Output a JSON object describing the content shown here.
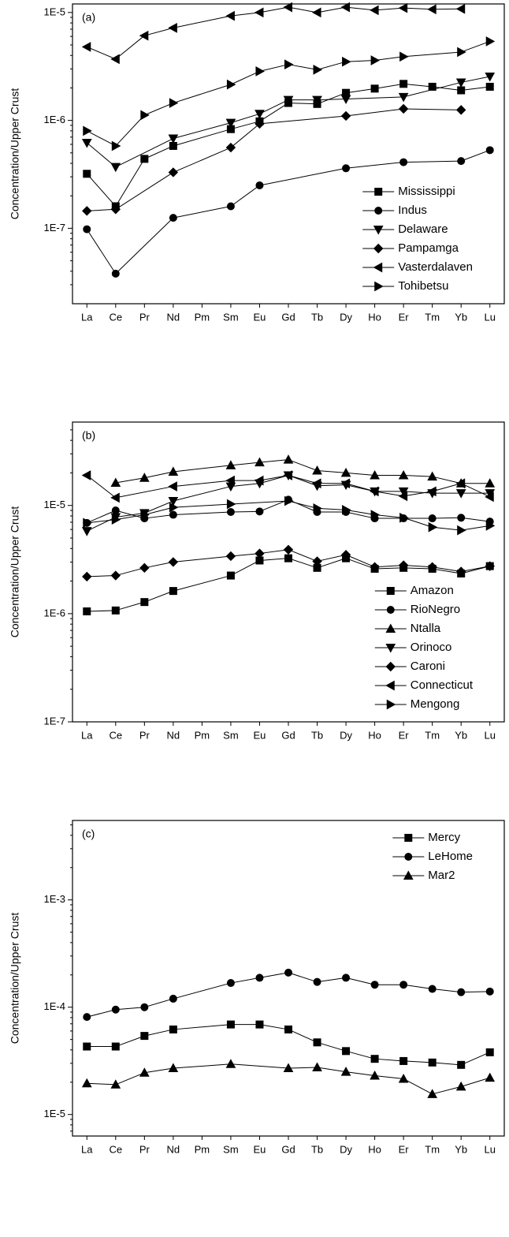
{
  "chart_data": [
    {
      "type": "line",
      "annotation": "(a)",
      "y_label": "Concentration/Upper Crust",
      "log_scale": true,
      "legend": "lower right",
      "categories": [
        "La",
        "Ce",
        "Pr",
        "Nd",
        "Pm",
        "Sm",
        "Eu",
        "Gd",
        "Tb",
        "Dy",
        "Ho",
        "Er",
        "Tm",
        "Yb",
        "Lu"
      ],
      "ylim": [
        2e-08,
        1.2e-05
      ],
      "yticks": [
        {
          "value": 1e-07,
          "label": "1E-7"
        },
        {
          "value": 1e-06,
          "label": "1E-6"
        },
        {
          "value": 1e-05,
          "label": "1E-5"
        }
      ],
      "series": [
        {
          "name": "Mississippi",
          "marker": "square",
          "color": "#000000",
          "values": [
            3.2e-07,
            1.6e-07,
            4.4e-07,
            5.8e-07,
            null,
            8.3e-07,
            9.8e-07,
            1.45e-06,
            1.42e-06,
            1.8e-06,
            1.97e-06,
            2.18e-06,
            2.05e-06,
            1.9e-06,
            2.05e-06
          ]
        },
        {
          "name": "Indus",
          "marker": "circle",
          "color": "#000000",
          "values": [
            9.8e-08,
            3.8e-08,
            null,
            1.25e-07,
            null,
            1.6e-07,
            2.5e-07,
            null,
            null,
            3.6e-07,
            null,
            4.1e-07,
            null,
            4.2e-07,
            5.3e-07
          ]
        },
        {
          "name": "Delaware",
          "marker": "triangle-down",
          "color": "#000000",
          "values": [
            6.2e-07,
            3.7e-07,
            null,
            6.8e-07,
            null,
            9.5e-07,
            1.15e-06,
            1.55e-06,
            1.55e-06,
            1.58e-06,
            null,
            1.65e-06,
            null,
            2.25e-06,
            2.55e-06
          ]
        },
        {
          "name": "Pampamga",
          "marker": "diamond",
          "color": "#000000",
          "values": [
            1.45e-07,
            1.5e-07,
            null,
            3.3e-07,
            null,
            5.6e-07,
            9.3e-07,
            null,
            null,
            1.1e-06,
            null,
            1.28e-06,
            null,
            1.25e-06,
            null
          ]
        },
        {
          "name": "Vasterdalaven",
          "marker": "triangle-left",
          "color": "#000000",
          "values": [
            4.8e-06,
            3.7e-06,
            6.1e-06,
            7.2e-06,
            null,
            9.3e-06,
            1e-05,
            1.12e-05,
            1e-05,
            1.12e-05,
            1.05e-05,
            1.1e-05,
            1.07e-05,
            1.08e-05,
            null
          ]
        },
        {
          "name": "Tohibetsu",
          "marker": "triangle-right",
          "color": "#000000",
          "values": [
            8e-07,
            5.8e-07,
            1.12e-06,
            1.45e-06,
            null,
            2.15e-06,
            2.85e-06,
            3.3e-06,
            2.95e-06,
            3.5e-06,
            3.6e-06,
            3.9e-06,
            null,
            4.3e-06,
            5.4e-06
          ]
        }
      ]
    },
    {
      "type": "line",
      "annotation": "(b)",
      "y_label": "Concentration/Upper Crust",
      "log_scale": true,
      "legend": "lower right",
      "categories": [
        "La",
        "Ce",
        "Pr",
        "Nd",
        "Pm",
        "Sm",
        "Eu",
        "Gd",
        "Tb",
        "Dy",
        "Ho",
        "Er",
        "Tm",
        "Yb",
        "Lu"
      ],
      "ylim": [
        1e-07,
        5.9e-05
      ],
      "yticks": [
        {
          "value": 1e-07,
          "label": "1E-7"
        },
        {
          "value": 1e-06,
          "label": "1E-6"
        },
        {
          "value": 1e-05,
          "label": "1E-5"
        }
      ],
      "series": [
        {
          "name": "Amazon",
          "marker": "square",
          "color": "#000000",
          "values": [
            1.05e-06,
            1.07e-06,
            1.28e-06,
            1.62e-06,
            null,
            2.25e-06,
            3.1e-06,
            3.25e-06,
            2.65e-06,
            3.25e-06,
            2.6e-06,
            2.65e-06,
            2.6e-06,
            2.35e-06,
            2.75e-06
          ]
        },
        {
          "name": "RioNegro",
          "marker": "circle",
          "color": "#000000",
          "values": [
            6.9e-06,
            9e-06,
            7.6e-06,
            8.2e-06,
            null,
            8.7e-06,
            8.8e-06,
            1.13e-05,
            8.7e-06,
            8.7e-06,
            7.6e-06,
            7.6e-06,
            7.6e-06,
            7.7e-06,
            7.1e-06
          ]
        },
        {
          "name": "Ntalla",
          "marker": "triangle-up",
          "color": "#000000",
          "values": [
            null,
            1.62e-05,
            1.8e-05,
            2.05e-05,
            null,
            2.35e-05,
            2.5e-05,
            2.65e-05,
            2.1e-05,
            2e-05,
            1.9e-05,
            1.9e-05,
            1.85e-05,
            1.6e-05,
            1.6e-05
          ]
        },
        {
          "name": "Orinoco",
          "marker": "triangle-down",
          "color": "#000000",
          "values": [
            5.8e-06,
            7.8e-06,
            8.5e-06,
            1.1e-05,
            null,
            1.5e-05,
            1.6e-05,
            1.9e-05,
            1.52e-05,
            1.55e-05,
            1.35e-05,
            1.35e-05,
            1.3e-05,
            1.3e-05,
            1.3e-05
          ]
        },
        {
          "name": "Caroni",
          "marker": "diamond",
          "color": "#000000",
          "values": [
            2.2e-06,
            2.25e-06,
            2.65e-06,
            3e-06,
            null,
            3.4e-06,
            3.6e-06,
            3.9e-06,
            3.05e-06,
            3.5e-06,
            2.7e-06,
            2.8e-06,
            2.7e-06,
            2.45e-06,
            2.75e-06
          ]
        },
        {
          "name": "Connecticut",
          "marker": "triangle-left",
          "color": "#000000",
          "values": [
            1.9e-05,
            1.18e-05,
            null,
            1.5e-05,
            null,
            1.7e-05,
            1.7e-05,
            1.9e-05,
            1.6e-05,
            1.6e-05,
            1.35e-05,
            1.22e-05,
            1.35e-05,
            1.6e-05,
            1.2e-05
          ]
        },
        {
          "name": "Mengong",
          "marker": "triangle-right",
          "color": "#000000",
          "values": [
            6.9e-06,
            7.4e-06,
            8.2e-06,
            9.6e-06,
            null,
            1.03e-05,
            null,
            1.1e-05,
            9.4e-06,
            9.1e-06,
            8.2e-06,
            7.7e-06,
            6.3e-06,
            5.9e-06,
            6.5e-06
          ]
        }
      ]
    },
    {
      "type": "line",
      "annotation": "(c)",
      "y_label": "Concentration/Upper Crust",
      "log_scale": true,
      "legend": "upper right",
      "categories": [
        "La",
        "Ce",
        "Pr",
        "Nd",
        "Pm",
        "Sm",
        "Eu",
        "Gd",
        "Tb",
        "Dy",
        "Ho",
        "Er",
        "Tm",
        "Yb",
        "Lu"
      ],
      "ylim": [
        6.3e-06,
        0.0055
      ],
      "yticks": [
        {
          "value": 1e-05,
          "label": "1E-5"
        },
        {
          "value": 0.0001,
          "label": "1E-4"
        },
        {
          "value": 0.001,
          "label": "1E-3"
        }
      ],
      "series": [
        {
          "name": "Mercy",
          "marker": "square",
          "color": "#000000",
          "values": [
            4.3e-05,
            4.3e-05,
            5.4e-05,
            6.2e-05,
            null,
            6.9e-05,
            6.9e-05,
            6.2e-05,
            4.7e-05,
            3.9e-05,
            3.3e-05,
            3.15e-05,
            3.05e-05,
            2.9e-05,
            3.8e-05
          ]
        },
        {
          "name": "LeHome",
          "marker": "circle",
          "color": "#000000",
          "values": [
            8.1e-05,
            9.5e-05,
            0.0001,
            0.00012,
            null,
            0.000168,
            0.000188,
            0.00021,
            0.000172,
            0.000188,
            0.000162,
            0.000162,
            0.000148,
            0.000138,
            0.00014
          ]
        },
        {
          "name": "Mar2",
          "marker": "triangle-up",
          "color": "#000000",
          "values": [
            1.95e-05,
            1.9e-05,
            2.45e-05,
            2.7e-05,
            null,
            2.95e-05,
            null,
            2.7e-05,
            2.75e-05,
            2.5e-05,
            2.3e-05,
            2.15e-05,
            1.55e-05,
            1.82e-05,
            2.2e-05
          ]
        }
      ]
    }
  ]
}
